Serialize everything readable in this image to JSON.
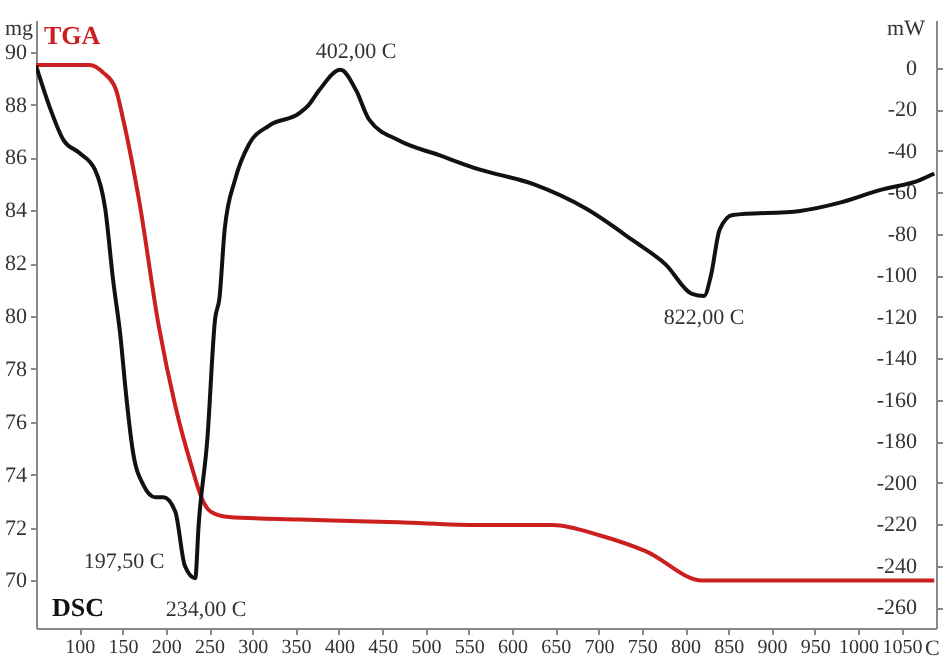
{
  "chart_data": {
    "type": "line",
    "xlabel": "C",
    "ylabel": "mg",
    "y2label": "mW",
    "xlim": [
      50,
      1090
    ],
    "xticks": [
      100,
      150,
      200,
      250,
      300,
      350,
      400,
      450,
      500,
      550,
      600,
      650,
      700,
      750,
      800,
      850,
      900,
      950,
      1000,
      1050
    ],
    "ylim": [
      68.2,
      91.2
    ],
    "yticks": [
      70,
      72,
      74,
      76,
      78,
      80,
      82,
      84,
      86,
      88,
      90
    ],
    "y2lim": [
      -270,
      23
    ],
    "y2ticks": [
      -260,
      -240,
      -220,
      -200,
      -180,
      -160,
      -140,
      -120,
      -100,
      -80,
      -60,
      -40,
      -20,
      0
    ],
    "grid": false,
    "series": [
      {
        "name": "TGA",
        "color": "#cc1f1f",
        "x": [
          50,
          112,
          128,
          142,
          151,
          169,
          192,
          211,
          229,
          243,
          252,
          273,
          354,
          469,
          562,
          647,
          702,
          755,
          820,
          900,
          1088
        ],
        "values": [
          89.5,
          89.5,
          89.2,
          88.6,
          87.4,
          84.4,
          79.6,
          76.6,
          74.4,
          73.0,
          72.6,
          72.4,
          72.3,
          72.2,
          72.1,
          72.1,
          71.7,
          71.1,
          70.0,
          70.0,
          70.0
        ]
      },
      {
        "name": "DSC",
        "color": "#111111",
        "axis": "y2",
        "x": [
          50,
          65,
          82,
          100,
          118,
          130,
          139,
          148,
          153,
          162,
          174,
          188,
          197.5,
          211,
          222,
          234,
          238,
          248,
          257,
          262,
          268,
          280,
          296,
          319,
          354,
          365,
          377,
          402,
          420,
          435,
          469,
          515,
          562,
          624,
          686,
          739,
          778,
          808,
          822,
          830,
          840,
          855,
          933,
          979,
          1025,
          1072,
          1088
        ],
        "values": [
          1,
          -18,
          -35,
          -41,
          -49,
          -68,
          -102,
          -131,
          -153,
          -185,
          -201,
          -207,
          -207,
          -214,
          -240,
          -246,
          -220,
          -179,
          -121,
          -111,
          -78,
          -54,
          -37,
          -28,
          -22,
          -18,
          -11,
          -1,
          -11,
          -25,
          -35,
          -42,
          -49,
          -56,
          -68,
          -83,
          -95,
          -109,
          -110,
          -100,
          -78,
          -71,
          -69,
          -65,
          -59,
          -54,
          -51
        ]
      }
    ],
    "annotations": [
      "197,50 C",
      "234,00 C",
      "402,00 C",
      "822,00 C"
    ]
  }
}
